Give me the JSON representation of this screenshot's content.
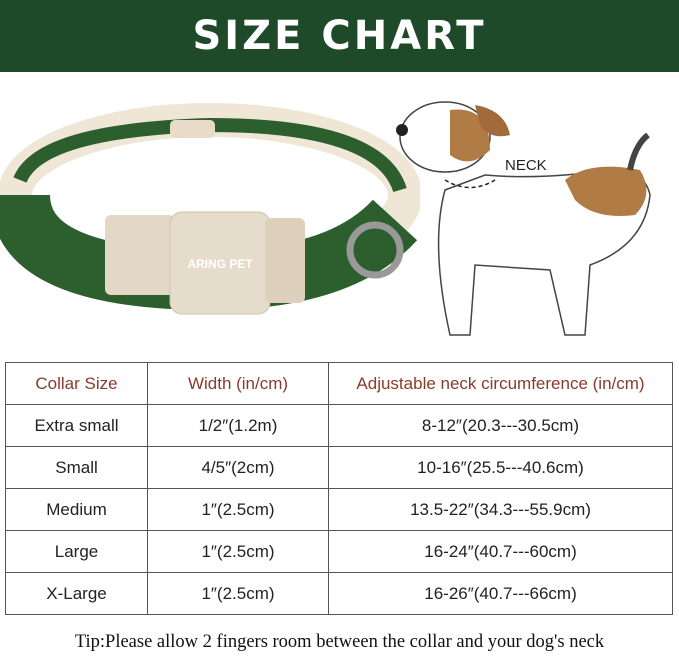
{
  "title": "SIZE CHART",
  "collar_brand": "ARING PET",
  "neck_label": "NECK",
  "colors": {
    "banner": "#1f4a2a",
    "collar": "#2c5e2e",
    "header_text": "#8b3a2a"
  },
  "table": {
    "headers": [
      "Collar Size",
      "Width (in/cm)",
      "Adjustable neck circumference (in/cm)"
    ],
    "rows": [
      [
        "Extra small",
        "1/2″(1.2m)",
        "8-12″(20.3---30.5cm)"
      ],
      [
        "Small",
        "4/5″(2cm)",
        "10-16″(25.5---40.6cm)"
      ],
      [
        "Medium",
        "1″(2.5cm)",
        "13.5-22″(34.3---55.9cm)"
      ],
      [
        "Large",
        "1″(2.5cm)",
        "16-24″(40.7---60cm)"
      ],
      [
        "X-Large",
        "1″(2.5cm)",
        "16-26″(40.7---66cm)"
      ]
    ]
  },
  "tip": "Tip:Please allow 2 fingers room between the collar and your dog's neck"
}
